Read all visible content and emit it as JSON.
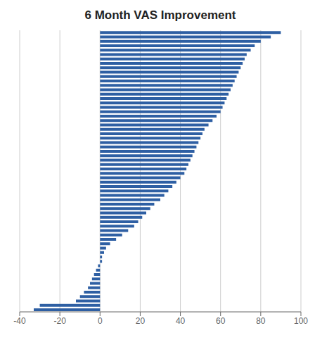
{
  "chart_data": {
    "type": "bar",
    "title": "6 Month VAS Improvement",
    "orientation": "horizontal",
    "values": [
      90,
      85,
      80,
      77,
      75,
      73,
      72,
      71,
      70,
      69,
      68,
      67,
      66,
      65,
      64,
      63,
      62,
      61,
      60,
      58,
      56,
      54,
      52,
      51,
      50,
      49,
      48,
      47,
      46,
      45,
      44,
      43,
      42,
      40,
      38,
      36,
      34,
      32,
      30,
      27,
      25,
      23,
      21,
      19,
      17,
      14,
      11,
      8,
      5,
      3,
      2,
      1,
      1,
      -1,
      -2,
      -3,
      -4,
      -5,
      -6,
      -8,
      -10,
      -12,
      -30,
      -33
    ],
    "color": "#2E5FA3",
    "xlim": [
      -40,
      100
    ],
    "xticks": [
      -40,
      -20,
      0,
      20,
      40,
      60,
      80,
      100
    ],
    "grid": true,
    "tick_labels": "x"
  }
}
